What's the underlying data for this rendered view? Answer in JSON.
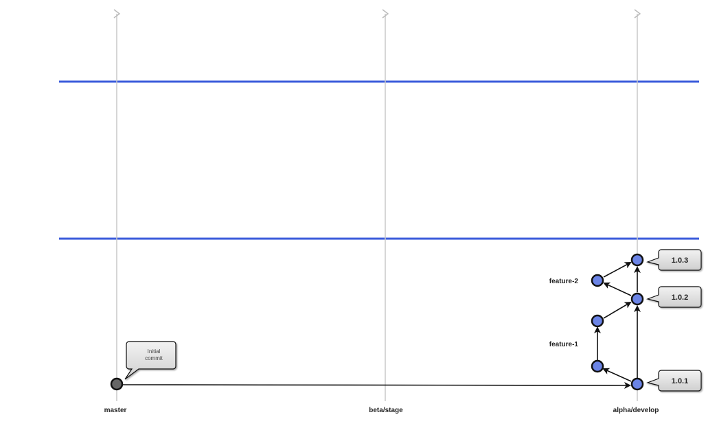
{
  "branches": {
    "master": "master",
    "beta": "beta/stage",
    "alpha": "alpha/develop"
  },
  "features": {
    "feature_2": "feature-2",
    "feature_1": "feature-1"
  },
  "tags": {
    "v101": "1.0.1",
    "v102": "1.0.2",
    "v103": "1.0.3"
  },
  "note": {
    "line1": "Initial",
    "line2": "commit"
  },
  "colors": {
    "commit_fill": "#6b84e6",
    "initial_commit_fill": "#666666",
    "stage_divider": "#3b5bdb",
    "branch_line": "#c8c8c8"
  }
}
